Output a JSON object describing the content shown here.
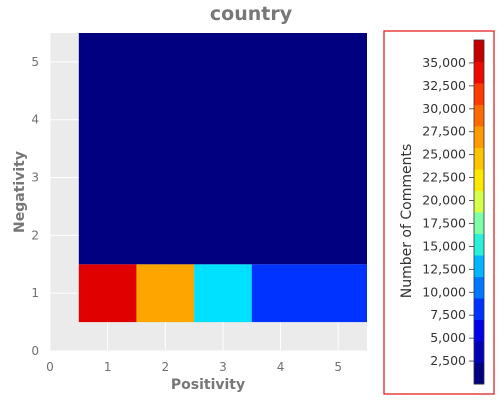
{
  "chart_data": {
    "type": "heatmap",
    "title": "country",
    "xlabel": "Positivity",
    "ylabel": "Negativity",
    "xlim": [
      0,
      5.5
    ],
    "ylim": [
      0,
      5.5
    ],
    "x_ticks": [
      "0",
      "1",
      "2",
      "3",
      "4",
      "5"
    ],
    "y_ticks": [
      "0",
      "1",
      "2",
      "3",
      "4",
      "5"
    ],
    "grid": true,
    "cells": [
      {
        "x": 1,
        "y": 1,
        "x_span": [
          0.5,
          1.5
        ],
        "y_span": [
          0.5,
          1.5
        ],
        "value": 35000,
        "color": "#e10000"
      },
      {
        "x": 2,
        "y": 1,
        "x_span": [
          1.5,
          2.5
        ],
        "y_span": [
          0.5,
          1.5
        ],
        "value": 23000,
        "color": "#ffa500"
      },
      {
        "x": 3,
        "y": 1,
        "x_span": [
          2.5,
          3.5
        ],
        "y_span": [
          0.5,
          1.5
        ],
        "value": 12000,
        "color": "#00e0ff"
      },
      {
        "x": "4–5",
        "y": 1,
        "x_span": [
          3.5,
          5.5
        ],
        "y_span": [
          0.5,
          1.5
        ],
        "value": 7000,
        "color": "#0033ff"
      },
      {
        "x": "1–5",
        "y": "2–5",
        "x_span": [
          0.5,
          5.5
        ],
        "y_span": [
          1.5,
          5.5
        ],
        "value": 500,
        "color": "#000080"
      }
    ],
    "colorbar": {
      "label": "Number of Comments",
      "range": [
        0,
        37500
      ],
      "ticks": [
        "2,500",
        "5,000",
        "7,500",
        "10,000",
        "12,500",
        "15,000",
        "17,500",
        "20,000",
        "22,500",
        "25,000",
        "27,500",
        "30,000",
        "32,500",
        "35,000"
      ],
      "bands": [
        "#000080",
        "#0000b4",
        "#0000ea",
        "#0033ff",
        "#0077ff",
        "#00b7ff",
        "#29f0d8",
        "#7dffa8",
        "#d6ff49",
        "#ffe800",
        "#ffc400",
        "#ff9a00",
        "#ff6a00",
        "#ff3a00",
        "#ee0a00",
        "#c40000"
      ]
    }
  }
}
